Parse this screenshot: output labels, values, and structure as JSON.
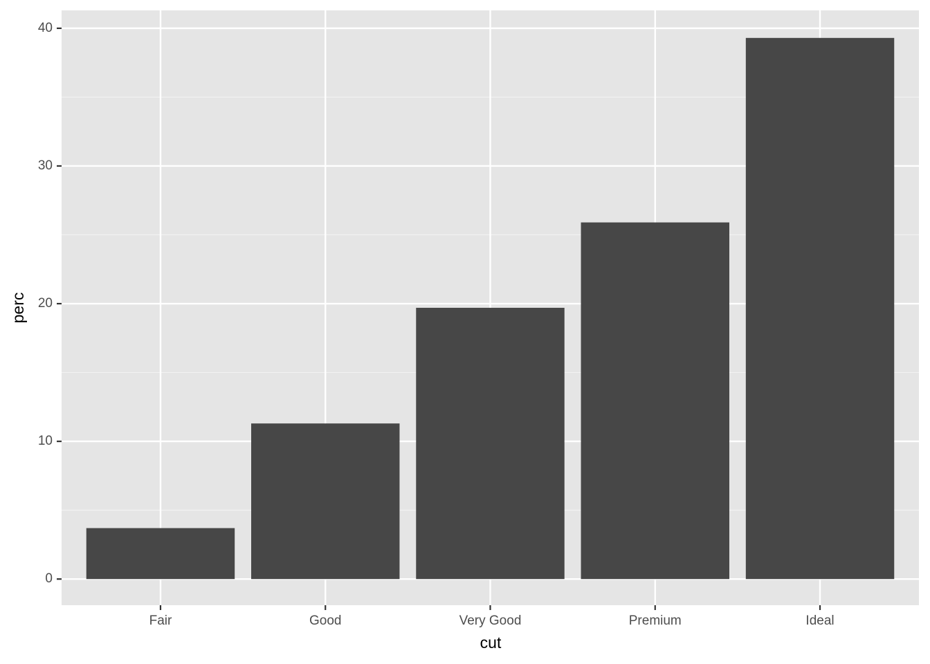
{
  "chart_data": {
    "type": "bar",
    "x_label": "cut",
    "y_label": "perc",
    "categories": [
      "Fair",
      "Good",
      "Very Good",
      "Premium",
      "Ideal"
    ],
    "values": [
      3.7,
      11.3,
      19.7,
      25.9,
      39.3
    ],
    "color": "#474747",
    "ylim": [
      -1.9,
      41.3
    ],
    "yticks": [
      0,
      10,
      20,
      30,
      40
    ],
    "grid": true
  }
}
